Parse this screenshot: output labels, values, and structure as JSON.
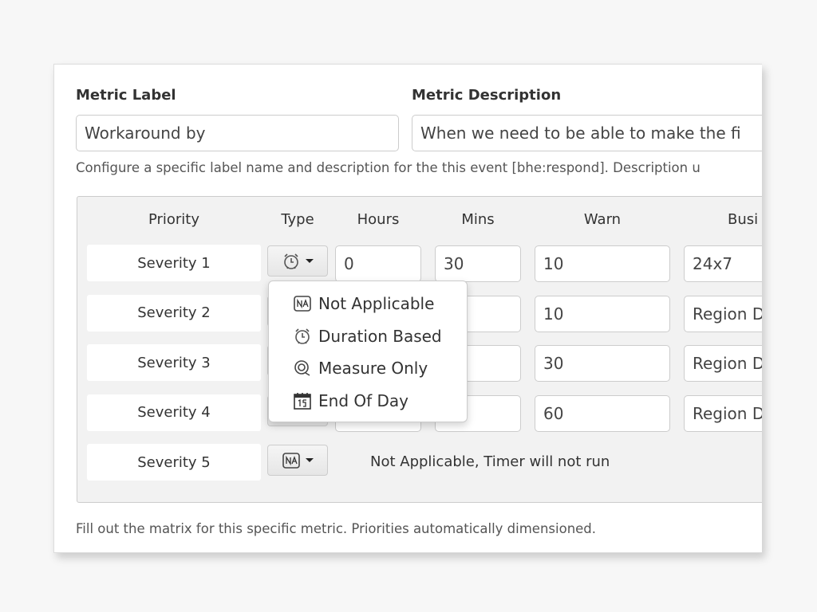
{
  "metric_label": {
    "label": "Metric Label",
    "value": "Workaround by"
  },
  "metric_description": {
    "label": "Metric Description",
    "value": "When we  need to be able to make the fi"
  },
  "help_text": "Configure a specific label name and description for the this event [bhe:respond]. Description u",
  "matrix": {
    "headers": [
      "Priority",
      "Type",
      "Hours",
      "Mins",
      "Warn",
      "Busi"
    ],
    "rows": [
      {
        "priority": "Severity 1",
        "type_icon": "alarm-clock-icon",
        "hours": "0",
        "mins": "30",
        "warn": "10",
        "business": "24x7"
      },
      {
        "priority": "Severity 2",
        "type_icon": "alarm-clock-icon",
        "hours": "",
        "mins": "",
        "warn": "10",
        "business": "Region D"
      },
      {
        "priority": "Severity 3",
        "type_icon": "alarm-clock-icon",
        "hours": "",
        "mins": "",
        "warn": "30",
        "business": "Region D"
      },
      {
        "priority": "Severity 4",
        "type_icon": "alarm-clock-icon",
        "hours": "",
        "mins": "",
        "warn": "60",
        "business": "Region D"
      },
      {
        "priority": "Severity 5",
        "type_icon": "na-icon",
        "note": "Not Applicable, Timer will not run"
      }
    ]
  },
  "type_menu": [
    {
      "label": "Not Applicable",
      "icon": "na-icon"
    },
    {
      "label": "Duration Based",
      "icon": "alarm-clock-icon"
    },
    {
      "label": "Measure Only",
      "icon": "measure-icon"
    },
    {
      "label": "End Of Day",
      "icon": "calendar-icon"
    }
  ],
  "footer_text": "Fill out the matrix for this specific metric. Priorities automatically dimensioned."
}
